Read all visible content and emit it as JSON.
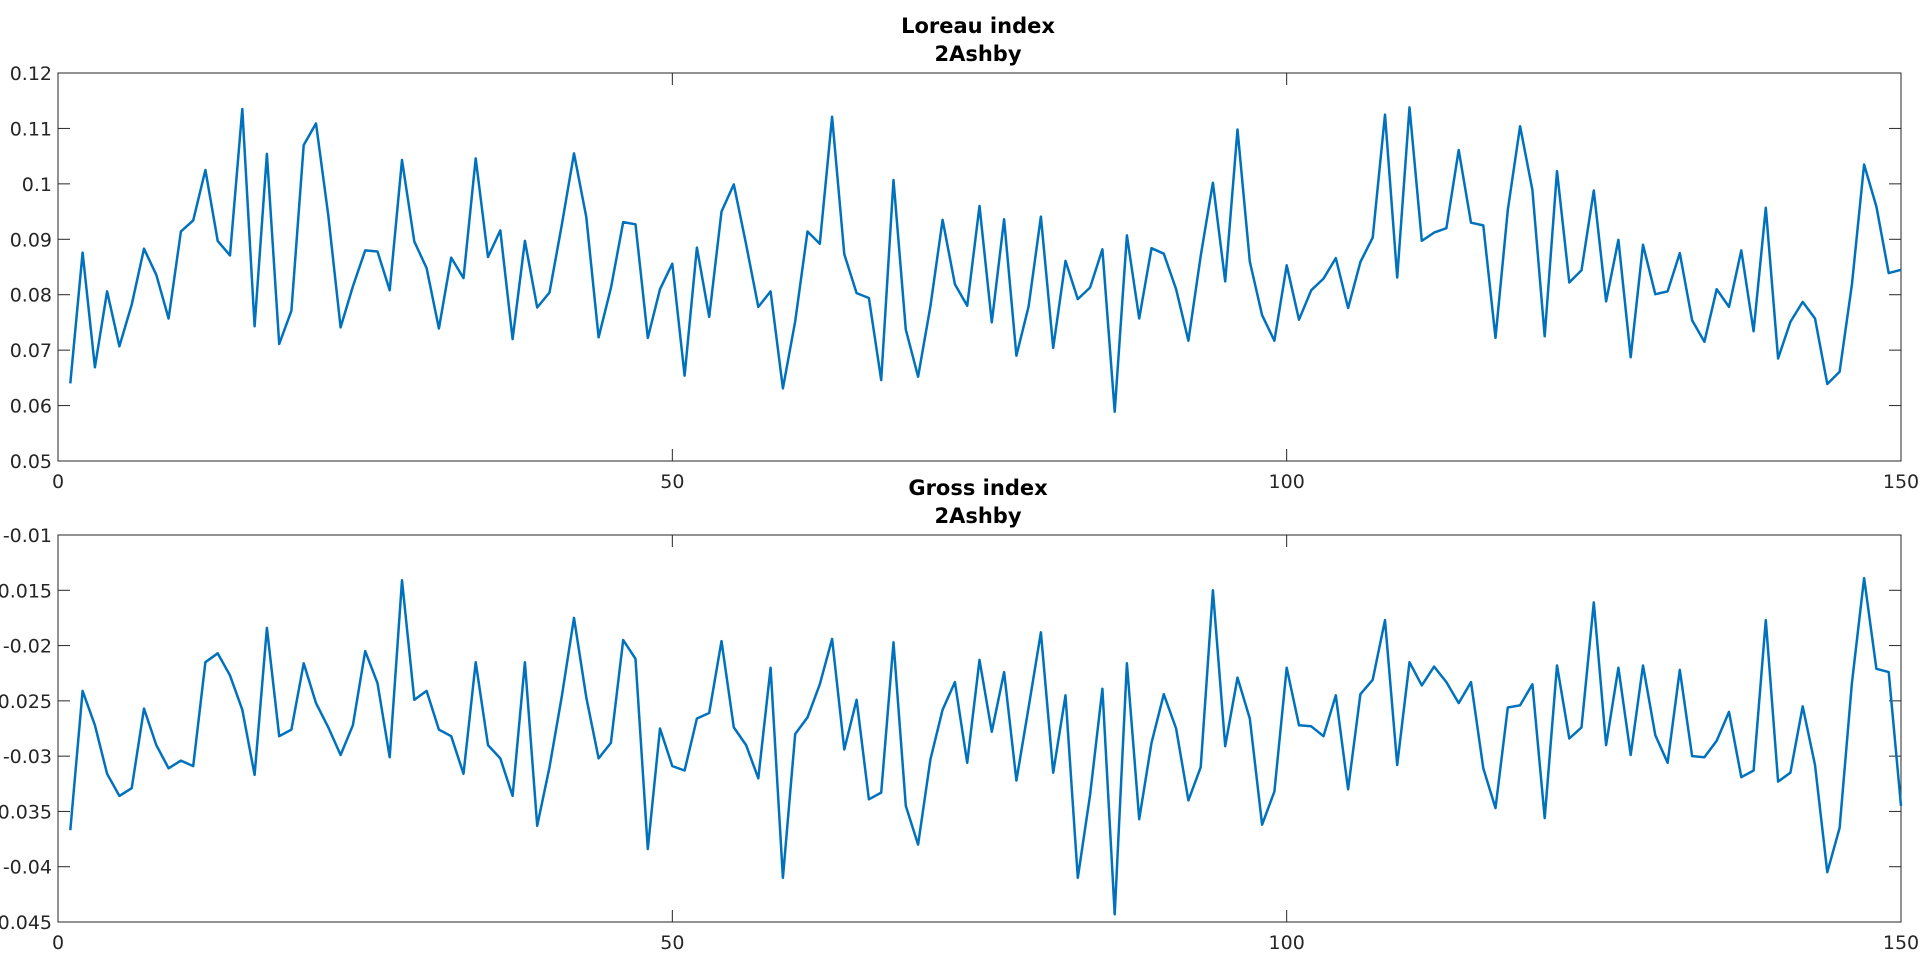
{
  "chart_data": [
    {
      "type": "line",
      "title": "Loreau index",
      "subtitle": "2Ashby",
      "xlabel": "",
      "ylabel": "",
      "xlim": [
        0,
        150
      ],
      "ylim": [
        0.05,
        0.12
      ],
      "xticks": [
        0,
        50,
        100,
        150
      ],
      "xtick_labels": [
        "0",
        "50",
        "100",
        "150"
      ],
      "yticks": [
        0.05,
        0.06,
        0.07,
        0.08,
        0.09,
        0.1,
        0.11,
        0.12
      ],
      "ytick_labels": [
        "0.05",
        "0.06",
        "0.07",
        "0.08",
        "0.09",
        "0.1",
        "0.11",
        "0.12"
      ],
      "grid": false,
      "color": "#0072bd",
      "series": [
        {
          "name": "Loreau index",
          "x_start": 1,
          "x_step": 1,
          "values": [
            0.064,
            0.0876,
            0.0669,
            0.0806,
            0.0707,
            0.0782,
            0.0883,
            0.0836,
            0.0757,
            0.0914,
            0.0934,
            0.1025,
            0.0897,
            0.0871,
            0.1135,
            0.0743,
            0.1054,
            0.0711,
            0.0771,
            0.107,
            0.1109,
            0.0943,
            0.0741,
            0.0815,
            0.088,
            0.0878,
            0.0808,
            0.1043,
            0.0896,
            0.0848,
            0.0739,
            0.0867,
            0.083,
            0.1046,
            0.0868,
            0.0916,
            0.072,
            0.0897,
            0.0777,
            0.0804,
            0.0926,
            0.1055,
            0.094,
            0.0723,
            0.0812,
            0.0931,
            0.0927,
            0.0722,
            0.081,
            0.0856,
            0.0654,
            0.0885,
            0.076,
            0.095,
            0.0999,
            0.0891,
            0.0778,
            0.0806,
            0.0631,
            0.0752,
            0.0914,
            0.0892,
            0.1121,
            0.0873,
            0.0803,
            0.0794,
            0.0646,
            0.1007,
            0.0737,
            0.0652,
            0.0779,
            0.0935,
            0.0819,
            0.078,
            0.096,
            0.075,
            0.0936,
            0.069,
            0.0779,
            0.0941,
            0.0704,
            0.0861,
            0.0792,
            0.0813,
            0.0882,
            0.0589,
            0.0907,
            0.0757,
            0.0884,
            0.0874,
            0.081,
            0.0717,
            0.087,
            0.1002,
            0.0824,
            0.1098,
            0.086,
            0.0763,
            0.0717,
            0.0853,
            0.0755,
            0.0808,
            0.0829,
            0.0866,
            0.0776,
            0.0859,
            0.0903,
            0.1125,
            0.0831,
            0.1138,
            0.0897,
            0.0912,
            0.092,
            0.1061,
            0.093,
            0.0925,
            0.0722,
            0.0953,
            0.1104,
            0.0989,
            0.0725,
            0.1023,
            0.0822,
            0.0844,
            0.0988,
            0.0788,
            0.0899,
            0.0687,
            0.089,
            0.0801,
            0.0806,
            0.0875,
            0.0754,
            0.0715,
            0.081,
            0.0778,
            0.088,
            0.0734,
            0.0957,
            0.0685,
            0.0751,
            0.0787,
            0.0757,
            0.0639,
            0.0661,
            0.0818,
            0.1035,
            0.0959,
            0.0839,
            0.0845
          ]
        }
      ]
    },
    {
      "type": "line",
      "title": "Gross index",
      "subtitle": "2Ashby",
      "xlabel": "",
      "ylabel": "",
      "xlim": [
        0,
        150
      ],
      "ylim": [
        -0.045,
        -0.01
      ],
      "xticks": [
        0,
        50,
        100,
        150
      ],
      "xtick_labels": [
        "0",
        "50",
        "100",
        "150"
      ],
      "yticks": [
        -0.045,
        -0.04,
        -0.035,
        -0.03,
        -0.025,
        -0.02,
        -0.015,
        -0.01
      ],
      "ytick_labels": [
        "-0.045",
        "-0.04",
        "-0.035",
        "-0.03",
        "-0.025",
        "-0.02",
        "-0.015",
        "-0.01"
      ],
      "grid": false,
      "color": "#0072bd",
      "series": [
        {
          "name": "Gross index",
          "x_start": 1,
          "x_step": 1,
          "values": [
            -0.0367,
            -0.0241,
            -0.0272,
            -0.0316,
            -0.0336,
            -0.0329,
            -0.0257,
            -0.029,
            -0.0311,
            -0.0304,
            -0.0309,
            -0.0215,
            -0.0207,
            -0.0227,
            -0.0258,
            -0.0317,
            -0.0184,
            -0.0282,
            -0.0276,
            -0.0216,
            -0.0252,
            -0.0274,
            -0.0299,
            -0.0272,
            -0.0205,
            -0.0234,
            -0.0301,
            -0.0141,
            -0.0249,
            -0.0241,
            -0.0276,
            -0.0282,
            -0.0316,
            -0.0215,
            -0.029,
            -0.0302,
            -0.0336,
            -0.0215,
            -0.0363,
            -0.031,
            -0.0246,
            -0.0175,
            -0.0247,
            -0.0302,
            -0.0288,
            -0.0195,
            -0.0212,
            -0.0384,
            -0.0275,
            -0.0309,
            -0.0313,
            -0.0266,
            -0.0261,
            -0.0196,
            -0.0274,
            -0.029,
            -0.032,
            -0.022,
            -0.041,
            -0.028,
            -0.0265,
            -0.0235,
            -0.0194,
            -0.0294,
            -0.0249,
            -0.0339,
            -0.0333,
            -0.0197,
            -0.0345,
            -0.038,
            -0.0303,
            -0.0258,
            -0.0233,
            -0.0306,
            -0.0213,
            -0.0278,
            -0.0224,
            -0.0322,
            -0.0256,
            -0.0188,
            -0.0315,
            -0.0245,
            -0.041,
            -0.0335,
            -0.0239,
            -0.0443,
            -0.0216,
            -0.0357,
            -0.0288,
            -0.0244,
            -0.0275,
            -0.034,
            -0.031,
            -0.015,
            -0.0291,
            -0.0229,
            -0.0266,
            -0.0362,
            -0.0332,
            -0.022,
            -0.0272,
            -0.0273,
            -0.0282,
            -0.0245,
            -0.033,
            -0.0244,
            -0.0231,
            -0.0177,
            -0.0308,
            -0.0215,
            -0.0236,
            -0.0219,
            -0.0233,
            -0.0252,
            -0.0233,
            -0.0311,
            -0.0347,
            -0.0256,
            -0.0254,
            -0.0235,
            -0.0356,
            -0.0218,
            -0.0284,
            -0.0274,
            -0.0161,
            -0.029,
            -0.022,
            -0.0299,
            -0.0218,
            -0.0281,
            -0.0306,
            -0.0222,
            -0.03,
            -0.0301,
            -0.0286,
            -0.026,
            -0.0319,
            -0.0313,
            -0.0177,
            -0.0323,
            -0.0315,
            -0.0255,
            -0.0308,
            -0.0405,
            -0.0365,
            -0.0234,
            -0.0139,
            -0.0221,
            -0.0224,
            -0.0345
          ]
        }
      ]
    }
  ]
}
